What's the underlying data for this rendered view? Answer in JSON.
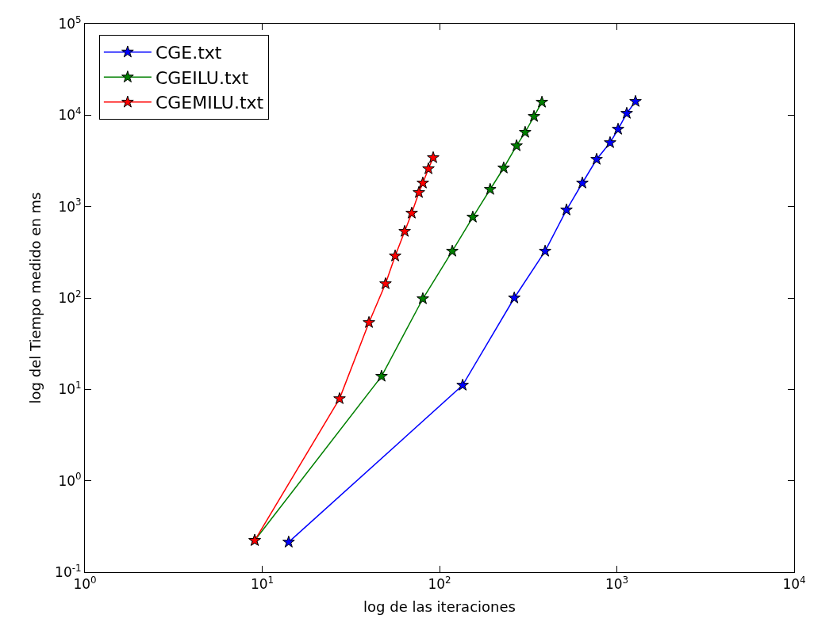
{
  "chart_data": {
    "type": "line",
    "xlabel": "log de las iteraciones",
    "ylabel": "log del Tiempo medido en ms",
    "log": "xy",
    "grid": false,
    "legend": "top left",
    "marker": "star",
    "line_style": "solid",
    "xlim": [
      1,
      10000
    ],
    "ylim": [
      0.1,
      100000
    ],
    "xticks": [
      {
        "value": 1,
        "label": "10$^{0}$"
      },
      {
        "value": 10,
        "label": "10$^{1}$"
      },
      {
        "value": 100,
        "label": "10$^{2}$"
      },
      {
        "value": 1000,
        "label": "10$^{3}$"
      },
      {
        "value": 10000,
        "label": "10$^{4}$"
      }
    ],
    "yticks": [
      {
        "value": 0.1,
        "label": "10$^{-1}$"
      },
      {
        "value": 1,
        "label": "10$^{0}$"
      },
      {
        "value": 10,
        "label": "10$^{1}$"
      },
      {
        "value": 100,
        "label": "10$^{2}$"
      },
      {
        "value": 1000,
        "label": "10$^{3}$"
      },
      {
        "value": 10000,
        "label": "10$^{4}$"
      },
      {
        "value": 100000,
        "label": "10$^{5}$"
      }
    ],
    "series": [
      {
        "name": "CGE.txt",
        "color": "#0000ff",
        "x": [
          14.1,
          135,
          264,
          394,
          520,
          639,
          769,
          916,
          1016,
          1137,
          1274
        ],
        "values": [
          0.213,
          11.1,
          100,
          325,
          918,
          1808,
          3289,
          5000,
          7015,
          10470,
          14130
        ]
      },
      {
        "name": "CGEILU.txt",
        "color": "#008000",
        "x": [
          9.07,
          47.1,
          80.5,
          118,
          154,
          193,
          230,
          272,
          304,
          341,
          378
        ],
        "values": [
          0.222,
          13.9,
          98,
          325,
          766,
          1541,
          2642,
          4624,
          6490,
          9680,
          13870
        ]
      },
      {
        "name": "CGEMILU.txt",
        "color": "#ff0000",
        "x": [
          9.07,
          27.3,
          40,
          49.6,
          56.2,
          63.6,
          69.7,
          76.5,
          80.5,
          86.6,
          92.1
        ],
        "values": [
          0.222,
          7.9,
          53.8,
          143,
          288,
          535,
          847,
          1423,
          1808,
          2590,
          3425
        ]
      }
    ]
  }
}
